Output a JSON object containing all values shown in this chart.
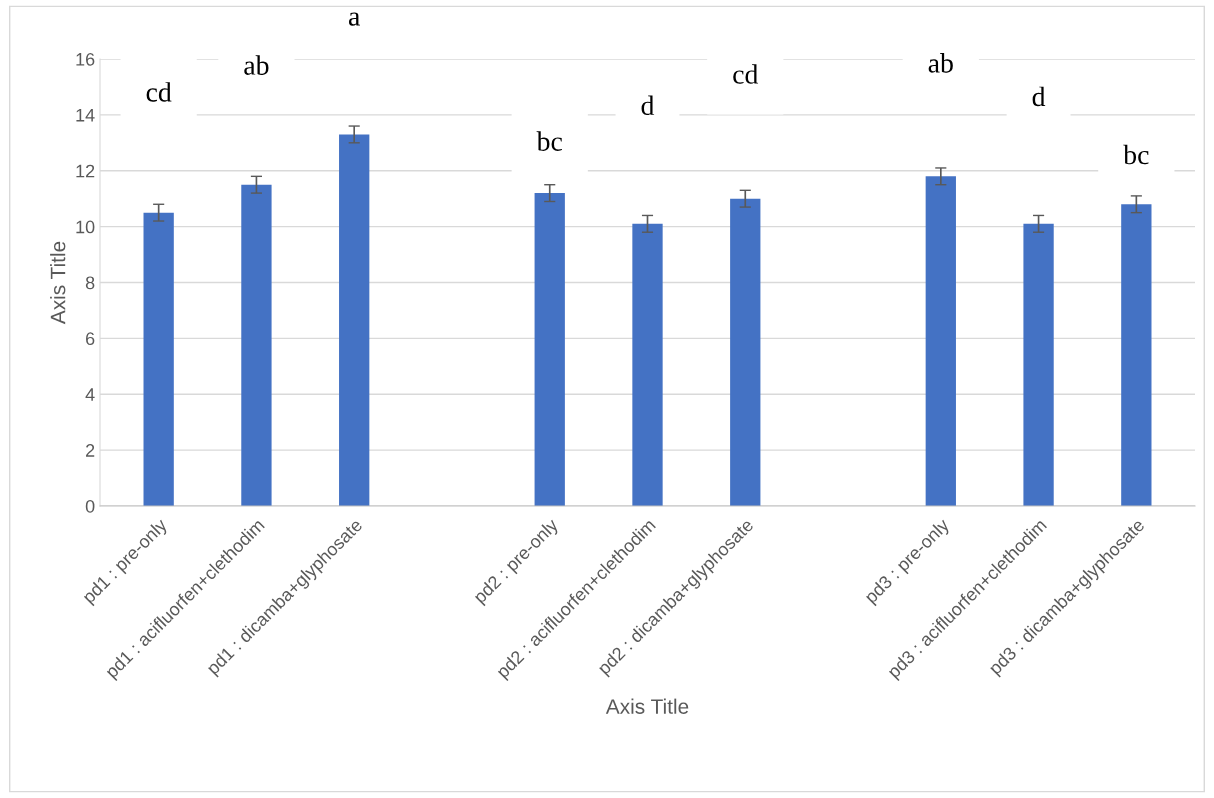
{
  "chart_data": {
    "type": "bar",
    "xlabel": "Axis Title",
    "ylabel": "Axis Title",
    "categories": [
      "pd1 : pre-only",
      "pd1 : acifluorfen+clethodim",
      "pd1 : dicamba+glyphosate",
      null,
      "pd2 : pre-only",
      "pd2 : acifluorfen+clethodim",
      "pd2 : dicamba+glyphosate",
      null,
      "pd3 : pre-only",
      "pd3 : acifluorfen+clethodim",
      "pd3 : dicamba+glyphosate"
    ],
    "values": [
      10.5,
      11.5,
      13.3,
      null,
      11.2,
      10.1,
      11.0,
      null,
      11.8,
      10.1,
      10.8
    ],
    "errors": [
      0.3,
      0.3,
      0.3,
      null,
      0.3,
      0.3,
      0.3,
      null,
      0.3,
      0.3,
      0.3
    ],
    "color": "#4472c4",
    "ylim": [
      0,
      16
    ],
    "yticks": [
      0,
      2,
      4,
      6,
      8,
      10,
      12,
      14,
      16
    ],
    "grid": "y",
    "legend": false,
    "annotations": [
      "cd",
      "ab",
      "a",
      "bc",
      "d",
      "cd",
      "ab",
      "d",
      "bc"
    ]
  }
}
